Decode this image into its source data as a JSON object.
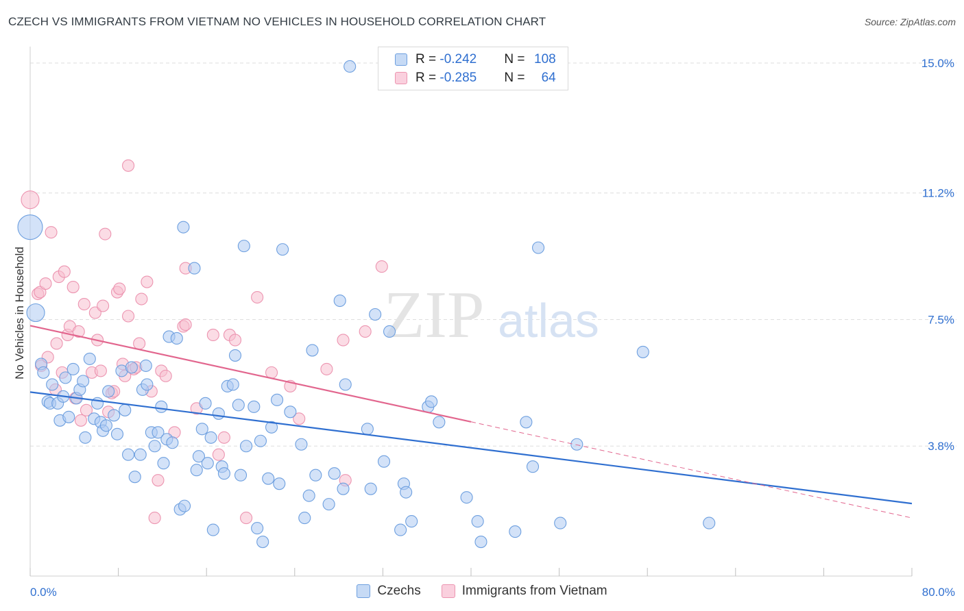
{
  "header": {
    "title": "CZECH VS IMMIGRANTS FROM VIETNAM NO VEHICLES IN HOUSEHOLD CORRELATION CHART",
    "source": "Source: ZipAtlas.com"
  },
  "watermark": {
    "zip": "ZIP",
    "atlas": "atlas"
  },
  "legend": {
    "rows": [
      {
        "r_label": "R = ",
        "r_value": "-0.242",
        "n_label": "N = ",
        "n_value": "108"
      },
      {
        "r_label": "R = ",
        "r_value": "-0.285",
        "n_label": "N = ",
        "n_value": "64"
      }
    ]
  },
  "bottom_legend": {
    "czech": "Czechs",
    "vietnam": "Immigrants from Vietnam"
  },
  "colors": {
    "czech_fill": "#aecbf2",
    "czech_stroke": "#6d9fdf",
    "czech_line": "#2f6fd0",
    "vietnam_fill": "#f7bfd0",
    "vietnam_stroke": "#ec94b0",
    "vietnam_line": "#e2668e",
    "tick_label": "#2f6fd0",
    "grid": "#dedede"
  },
  "chart_data": {
    "type": "scatter",
    "title": "CZECH VS IMMIGRANTS FROM VIETNAM NO VEHICLES IN HOUSEHOLD CORRELATION CHART",
    "xlabel": "",
    "ylabel": "No Vehicles in Household",
    "xlim": [
      0,
      80
    ],
    "ylim": [
      0,
      15.4
    ],
    "x_tick_labels": [
      "0.0%",
      "80.0%"
    ],
    "y_ticks": [
      3.8,
      7.5,
      11.2,
      15.0
    ],
    "y_tick_labels": [
      "3.8%",
      "7.5%",
      "11.2%",
      "15.0%"
    ],
    "grid": true,
    "legend_position": "top-center",
    "series": [
      {
        "name": "Czechs",
        "points": [
          [
            0.0,
            10.2,
            3
          ],
          [
            0.5,
            7.7,
            2
          ],
          [
            29,
            14.9,
            1
          ],
          [
            1.0,
            6.2,
            1
          ],
          [
            1.2,
            5.95,
            1
          ],
          [
            1.6,
            5.1,
            1
          ],
          [
            1.8,
            5.05,
            1
          ],
          [
            2.0,
            5.6,
            1
          ],
          [
            2.5,
            5.05,
            1
          ],
          [
            2.7,
            4.55,
            1
          ],
          [
            3.0,
            5.25,
            1
          ],
          [
            3.2,
            5.8,
            1
          ],
          [
            3.5,
            4.65,
            1
          ],
          [
            3.9,
            6.05,
            1
          ],
          [
            4.2,
            5.2,
            1
          ],
          [
            4.5,
            5.45,
            1
          ],
          [
            4.8,
            5.7,
            1
          ],
          [
            5.0,
            4.05,
            1
          ],
          [
            5.4,
            6.35,
            1
          ],
          [
            5.8,
            4.6,
            1
          ],
          [
            6.1,
            5.05,
            1
          ],
          [
            6.4,
            4.5,
            1
          ],
          [
            6.6,
            4.25,
            1
          ],
          [
            6.9,
            4.4,
            1
          ],
          [
            7.1,
            5.4,
            1
          ],
          [
            7.6,
            4.7,
            1
          ],
          [
            7.9,
            4.15,
            1
          ],
          [
            8.3,
            6.0,
            1
          ],
          [
            8.6,
            4.85,
            1
          ],
          [
            8.9,
            3.55,
            1
          ],
          [
            9.2,
            6.1,
            1
          ],
          [
            9.5,
            2.9,
            1
          ],
          [
            10.0,
            3.55,
            1
          ],
          [
            10.2,
            5.45,
            1
          ],
          [
            10.5,
            6.15,
            1
          ],
          [
            10.6,
            5.6,
            1
          ],
          [
            11.0,
            4.2,
            1
          ],
          [
            11.3,
            3.8,
            1
          ],
          [
            11.6,
            4.2,
            1
          ],
          [
            11.9,
            4.95,
            1
          ],
          [
            12.1,
            3.3,
            1
          ],
          [
            12.4,
            4.0,
            1
          ],
          [
            12.6,
            7.0,
            1
          ],
          [
            12.9,
            3.9,
            1
          ],
          [
            13.3,
            6.95,
            1
          ],
          [
            13.6,
            1.95,
            1
          ],
          [
            13.9,
            10.2,
            1
          ],
          [
            14.0,
            2.05,
            1
          ],
          [
            14.9,
            9.0,
            1
          ],
          [
            15.1,
            3.1,
            1
          ],
          [
            15.3,
            3.5,
            1
          ],
          [
            15.6,
            4.3,
            1
          ],
          [
            15.9,
            5.05,
            1
          ],
          [
            16.1,
            3.3,
            1
          ],
          [
            16.4,
            4.05,
            1
          ],
          [
            16.6,
            1.35,
            1
          ],
          [
            17.1,
            4.75,
            1
          ],
          [
            17.4,
            3.2,
            1
          ],
          [
            17.6,
            3.0,
            1
          ],
          [
            17.9,
            5.55,
            1
          ],
          [
            18.4,
            5.6,
            1
          ],
          [
            18.6,
            6.45,
            1
          ],
          [
            18.9,
            5.0,
            1
          ],
          [
            19.1,
            2.95,
            1
          ],
          [
            19.4,
            9.65,
            1
          ],
          [
            19.6,
            3.8,
            1
          ],
          [
            20.3,
            4.95,
            1
          ],
          [
            20.6,
            1.4,
            1
          ],
          [
            20.9,
            3.95,
            1
          ],
          [
            21.1,
            1.0,
            1
          ],
          [
            21.6,
            2.85,
            1
          ],
          [
            21.9,
            4.35,
            1
          ],
          [
            22.4,
            5.15,
            1
          ],
          [
            22.6,
            2.7,
            1
          ],
          [
            22.9,
            9.55,
            1
          ],
          [
            23.6,
            4.8,
            1
          ],
          [
            24.6,
            3.85,
            1
          ],
          [
            24.9,
            1.7,
            1
          ],
          [
            25.3,
            2.35,
            1
          ],
          [
            25.6,
            6.6,
            1
          ],
          [
            25.9,
            2.95,
            1
          ],
          [
            27.1,
            2.1,
            1
          ],
          [
            27.6,
            3.0,
            1
          ],
          [
            28.1,
            8.05,
            1
          ],
          [
            28.4,
            2.55,
            1
          ],
          [
            28.6,
            5.6,
            1
          ],
          [
            30.6,
            4.3,
            1
          ],
          [
            30.9,
            2.55,
            1
          ],
          [
            31.3,
            7.65,
            1
          ],
          [
            32.1,
            3.35,
            1
          ],
          [
            32.6,
            7.15,
            1
          ],
          [
            33.6,
            1.35,
            1
          ],
          [
            33.9,
            2.7,
            1
          ],
          [
            34.1,
            2.45,
            1
          ],
          [
            34.6,
            1.6,
            1
          ],
          [
            36.1,
            4.95,
            1
          ],
          [
            36.4,
            5.1,
            1
          ],
          [
            37.1,
            4.5,
            1
          ],
          [
            39.6,
            2.3,
            1
          ],
          [
            40.6,
            1.6,
            1
          ],
          [
            40.9,
            1.0,
            1
          ],
          [
            44.0,
            1.3,
            1
          ],
          [
            45.0,
            4.5,
            1
          ],
          [
            45.6,
            3.2,
            1
          ],
          [
            46.1,
            9.6,
            1
          ],
          [
            48.1,
            1.55,
            1
          ],
          [
            49.6,
            3.85,
            1
          ],
          [
            55.6,
            6.55,
            1
          ],
          [
            61.6,
            1.55,
            1
          ]
        ],
        "trend_start": [
          0,
          5.38
        ],
        "trend_end": [
          80,
          2.12
        ],
        "trend_solid_to_x": 80
      },
      {
        "name": "Immigrants from Vietnam",
        "points": [
          [
            0.0,
            11.0,
            2
          ],
          [
            0.7,
            8.25,
            1
          ],
          [
            0.9,
            8.3,
            1
          ],
          [
            1.0,
            6.15,
            1
          ],
          [
            1.4,
            8.55,
            1
          ],
          [
            1.6,
            6.4,
            1
          ],
          [
            1.9,
            10.05,
            1
          ],
          [
            2.3,
            5.45,
            1
          ],
          [
            2.4,
            6.8,
            1
          ],
          [
            2.6,
            8.75,
            1
          ],
          [
            2.9,
            5.95,
            1
          ],
          [
            3.1,
            8.9,
            1
          ],
          [
            3.4,
            7.05,
            1
          ],
          [
            3.6,
            7.3,
            1
          ],
          [
            3.9,
            8.45,
            1
          ],
          [
            4.1,
            5.2,
            1
          ],
          [
            4.4,
            7.15,
            1
          ],
          [
            4.6,
            4.55,
            1
          ],
          [
            4.9,
            7.95,
            1
          ],
          [
            5.1,
            4.85,
            1
          ],
          [
            5.6,
            5.95,
            1
          ],
          [
            5.9,
            7.7,
            1
          ],
          [
            6.1,
            6.9,
            1
          ],
          [
            6.4,
            6.0,
            1
          ],
          [
            6.6,
            7.9,
            1
          ],
          [
            6.8,
            10.0,
            1
          ],
          [
            7.1,
            4.8,
            1
          ],
          [
            7.4,
            5.35,
            1
          ],
          [
            7.6,
            5.4,
            1
          ],
          [
            7.9,
            8.3,
            1
          ],
          [
            8.1,
            8.4,
            1
          ],
          [
            8.4,
            6.2,
            1
          ],
          [
            8.6,
            5.85,
            1
          ],
          [
            8.9,
            12.0,
            1
          ],
          [
            8.9,
            7.6,
            1
          ],
          [
            9.4,
            6.05,
            1
          ],
          [
            9.6,
            6.1,
            1
          ],
          [
            9.9,
            6.8,
            1
          ],
          [
            10.1,
            8.1,
            1
          ],
          [
            10.6,
            8.6,
            1
          ],
          [
            11.0,
            5.4,
            1
          ],
          [
            11.3,
            1.7,
            1
          ],
          [
            11.6,
            2.8,
            1
          ],
          [
            11.9,
            6.0,
            1
          ],
          [
            12.3,
            5.85,
            1
          ],
          [
            13.1,
            4.2,
            1
          ],
          [
            13.9,
            7.3,
            1
          ],
          [
            14.1,
            7.35,
            1
          ],
          [
            14.1,
            9.0,
            1
          ],
          [
            15.1,
            4.9,
            1
          ],
          [
            16.6,
            7.05,
            1
          ],
          [
            17.1,
            3.55,
            1
          ],
          [
            17.6,
            4.05,
            1
          ],
          [
            18.1,
            7.05,
            1
          ],
          [
            18.6,
            6.9,
            1
          ],
          [
            19.6,
            1.7,
            1
          ],
          [
            20.6,
            8.15,
            1
          ],
          [
            21.9,
            5.95,
            1
          ],
          [
            23.6,
            5.55,
            1
          ],
          [
            24.4,
            4.6,
            1
          ],
          [
            26.9,
            6.05,
            1
          ],
          [
            28.4,
            6.9,
            1
          ],
          [
            28.6,
            2.8,
            1
          ],
          [
            30.4,
            7.15,
            1
          ],
          [
            31.9,
            9.05,
            1
          ]
        ],
        "trend_start": [
          0,
          7.32
        ],
        "trend_end": [
          80,
          1.7
        ],
        "trend_solid_to_x": 40
      }
    ]
  }
}
